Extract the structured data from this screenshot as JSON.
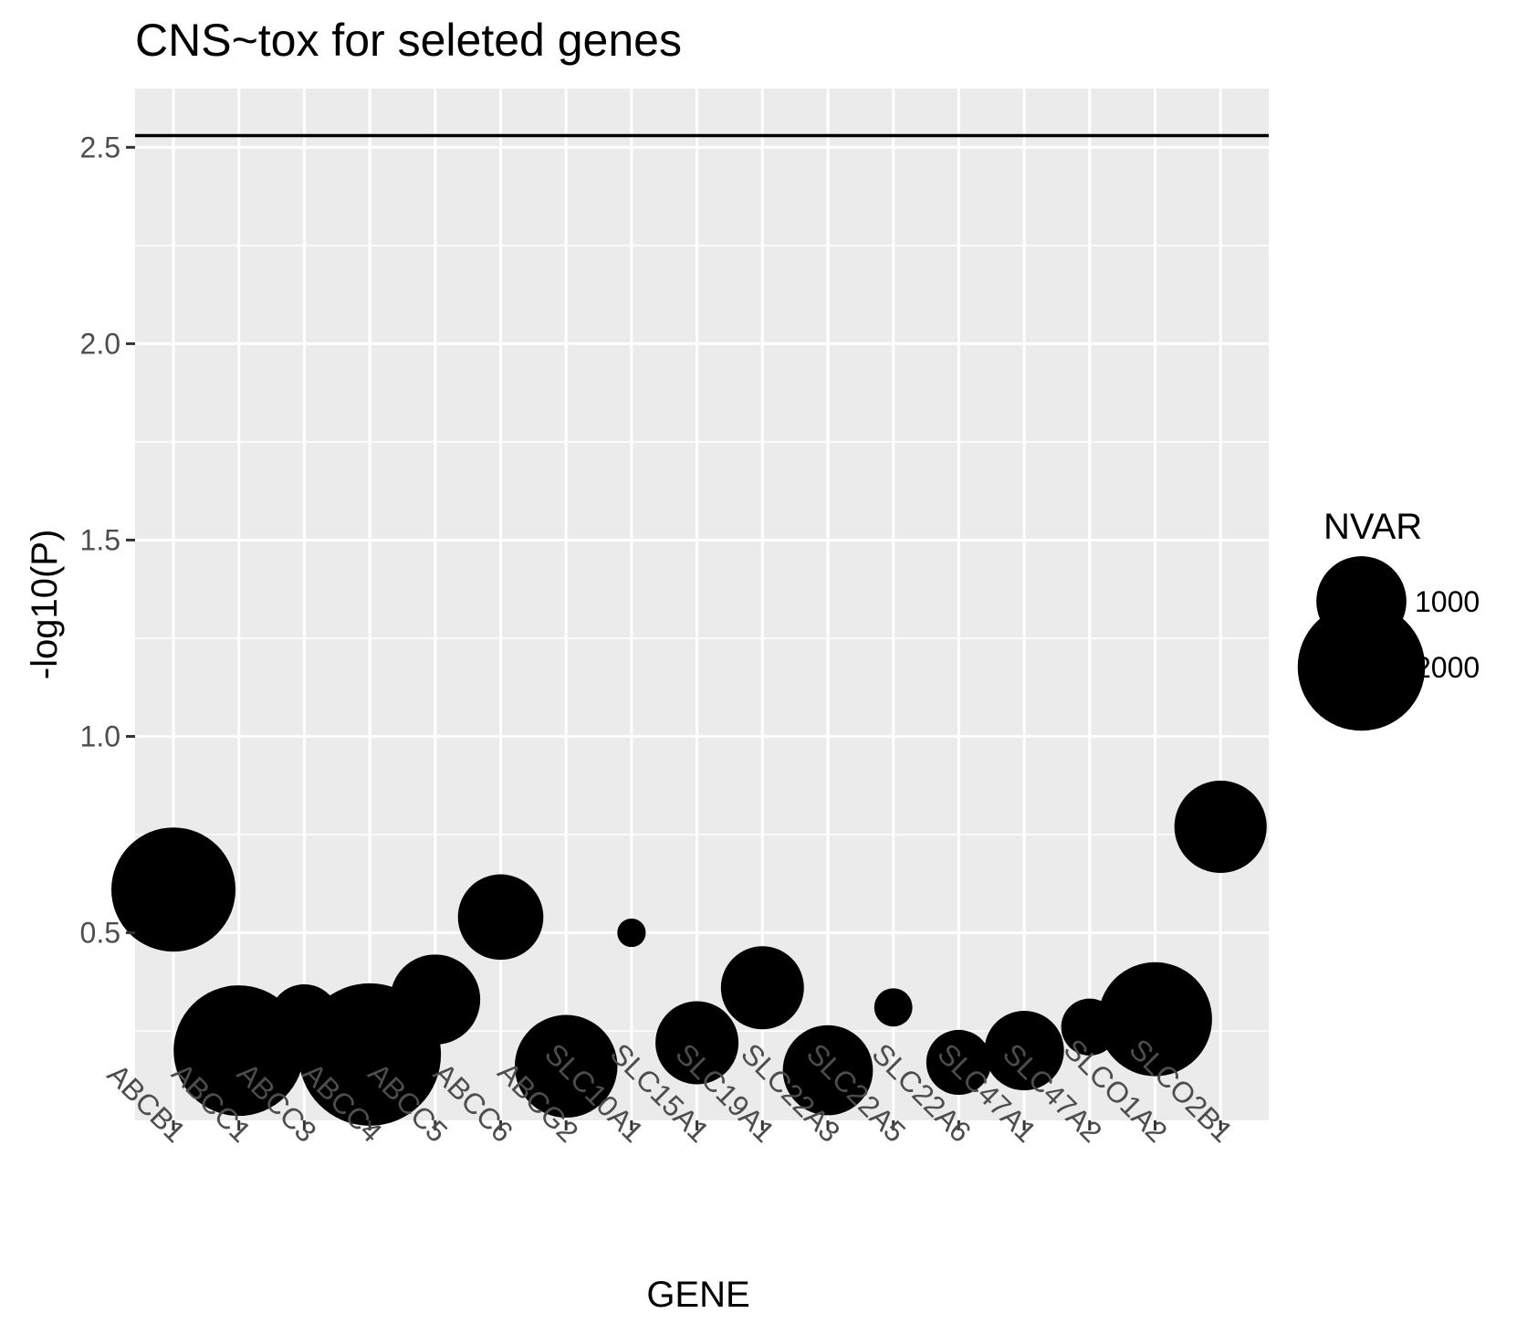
{
  "chart_data": {
    "type": "scatter",
    "title": "CNS~tox for seleted genes",
    "xlabel": "GENE",
    "ylabel": "-log10(P)",
    "categories": [
      "ABCB1",
      "ABCC1",
      "ABCC3",
      "ABCC4",
      "ABCC5",
      "ABCC6",
      "ABCG2",
      "SLC10A1",
      "SLC15A1",
      "SLC19A1",
      "SLC22A3",
      "SLC22A5",
      "SLC22A6",
      "SLC47A1",
      "SLC47A2",
      "SLCO1A2",
      "SLCO2B1"
    ],
    "points": [
      {
        "gene": "ABCB1",
        "y": 0.61,
        "nvar": 1900
      },
      {
        "gene": "ABCC1",
        "y": 0.2,
        "nvar": 2100
      },
      {
        "gene": "ABCC3",
        "y": 0.28,
        "nvar": 600
      },
      {
        "gene": "ABCC4",
        "y": 0.19,
        "nvar": 2500
      },
      {
        "gene": "ABCC5",
        "y": 0.33,
        "nvar": 1000
      },
      {
        "gene": "ABCC6",
        "y": 0.54,
        "nvar": 900
      },
      {
        "gene": "ABCG2",
        "y": 0.16,
        "nvar": 1300
      },
      {
        "gene": "SLC10A1",
        "y": 0.5,
        "nvar": 100
      },
      {
        "gene": "SLC15A1",
        "y": 0.22,
        "nvar": 850
      },
      {
        "gene": "SLC19A1",
        "y": 0.36,
        "nvar": 850
      },
      {
        "gene": "SLC22A3",
        "y": 0.15,
        "nvar": 1000
      },
      {
        "gene": "SLC22A5",
        "y": 0.31,
        "nvar": 180
      },
      {
        "gene": "SLC22A6",
        "y": 0.17,
        "nvar": 520
      },
      {
        "gene": "SLC47A1",
        "y": 0.2,
        "nvar": 780
      },
      {
        "gene": "SLC47A2",
        "y": 0.26,
        "nvar": 400
      },
      {
        "gene": "SLCO1A2",
        "y": 0.28,
        "nvar": 1600
      },
      {
        "gene": "SLCO2B1",
        "y": 0.77,
        "nvar": 1050
      }
    ],
    "ylim": [
      0,
      2.6
    ],
    "yticks": [
      "0.5",
      "1.0",
      "1.5",
      "2.0",
      "2.5"
    ],
    "hline": 2.53,
    "grid": true,
    "legend": {
      "title": "NVAR",
      "position": "right",
      "entries": [
        {
          "label": "1000",
          "value": 1000
        },
        {
          "label": "2000",
          "value": 2000
        }
      ]
    },
    "colors": {
      "panel": "#ebebeb",
      "grid": "#ffffff",
      "point": "#000000",
      "tick_label": "#4d4d4d",
      "hline": "#000000"
    }
  }
}
